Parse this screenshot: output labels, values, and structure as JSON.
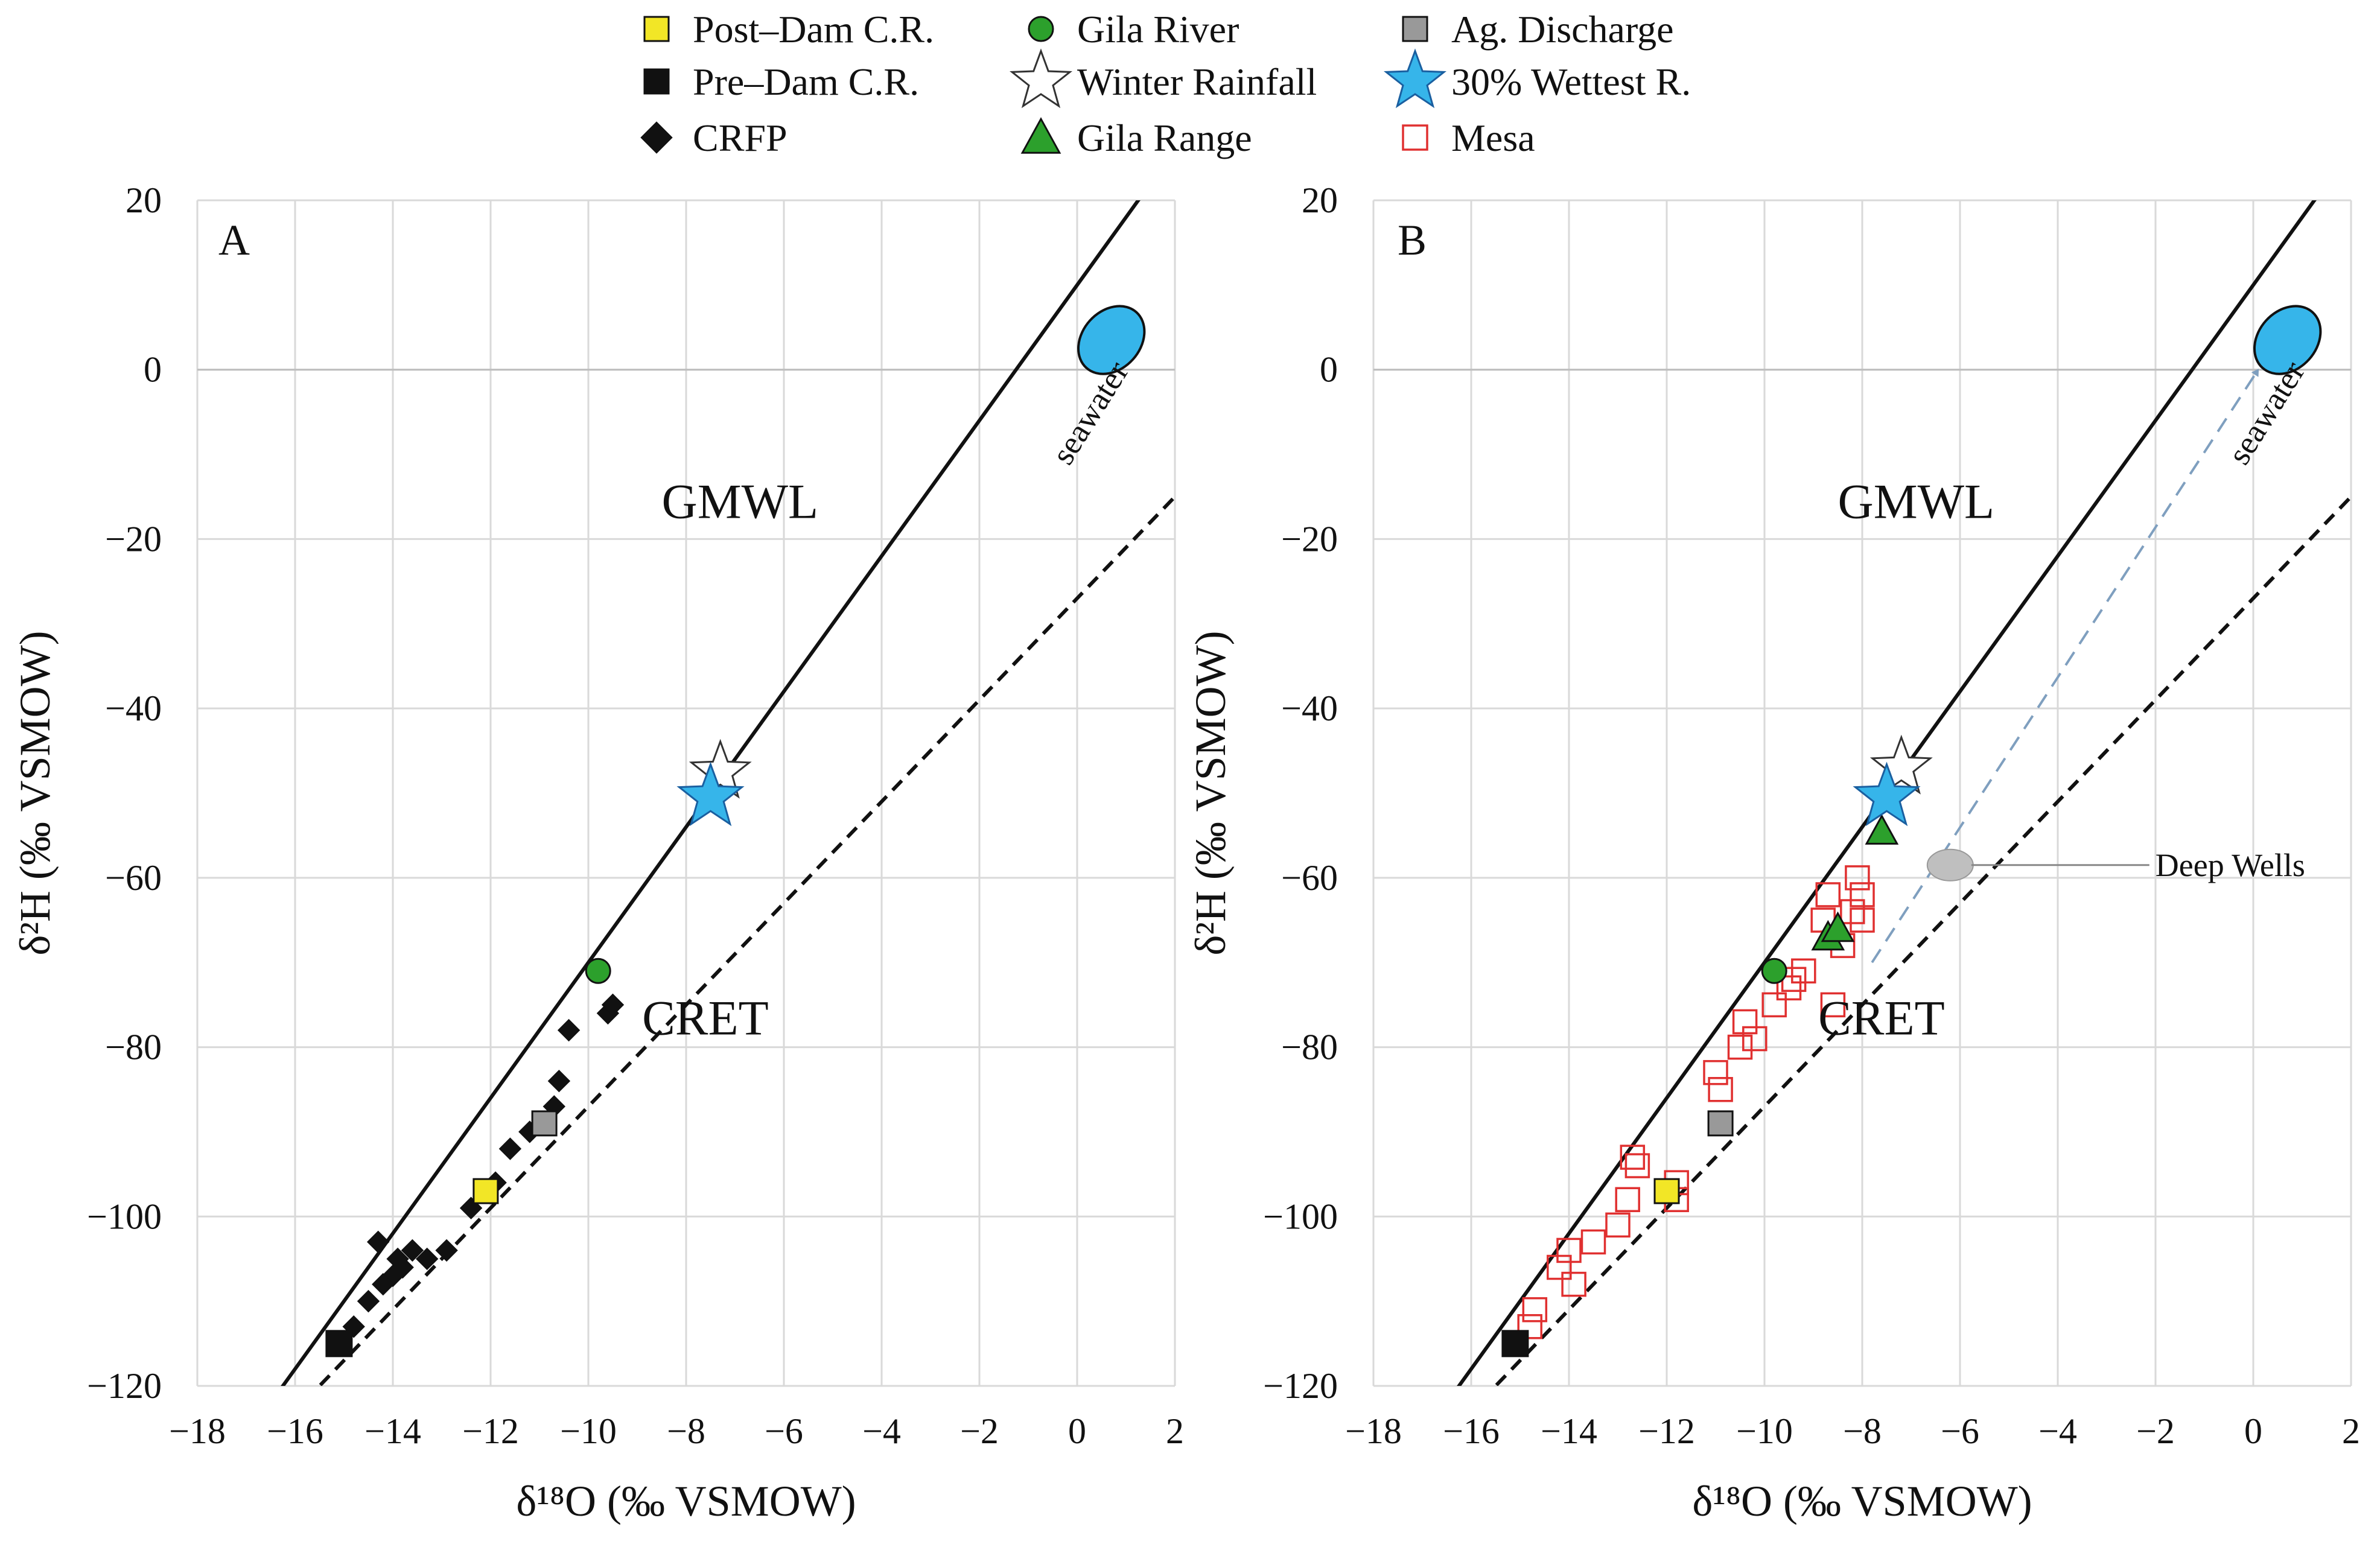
{
  "legend": [
    {
      "key": "post_dam",
      "label": "Post–Dam C.R.",
      "marker": "square",
      "fill": "#f2e626",
      "stroke": "#111111"
    },
    {
      "key": "pre_dam",
      "label": "Pre–Dam C.R.",
      "marker": "square",
      "fill": "#111111",
      "stroke": "#111111"
    },
    {
      "key": "crfp",
      "label": "CRFP",
      "marker": "diamond",
      "fill": "#111111",
      "stroke": "#111111"
    },
    {
      "key": "gila_river",
      "label": "Gila River",
      "marker": "circle",
      "fill": "#2ca02c",
      "stroke": "#111111"
    },
    {
      "key": "winter_rainfall",
      "label": "Winter Rainfall",
      "marker": "star",
      "fill": "#ffffff",
      "stroke": "#333333"
    },
    {
      "key": "gila_range",
      "label": "Gila Range",
      "marker": "triangle",
      "fill": "#2ca02c",
      "stroke": "#111111"
    },
    {
      "key": "ag_discharge",
      "label": "Ag. Discharge",
      "marker": "square",
      "fill": "#999999",
      "stroke": "#111111"
    },
    {
      "key": "wettest",
      "label": "30% Wettest R.",
      "marker": "star",
      "fill": "#36b5ea",
      "stroke": "#1a5fa0"
    },
    {
      "key": "mesa",
      "label": "Mesa",
      "marker": "open-square",
      "fill": "none",
      "stroke": "#e03030"
    }
  ],
  "colors": {
    "grid": "#d9d9d9",
    "seawater": "#36b5ea",
    "deep_wells": "#bfbfbf",
    "arrow": "#7f9fbf"
  },
  "chart_data": [
    {
      "type": "scatter",
      "panel": "A",
      "xlabel": "δ¹⁸O (‰ VSMOW)",
      "ylabel": "δ²H (‰  VSMOW)",
      "xlim": [
        -18,
        2
      ],
      "ylim": [
        -120,
        20
      ],
      "xticks": [
        -18,
        -16,
        -14,
        -12,
        -10,
        -8,
        -6,
        -4,
        -2,
        0,
        2
      ],
      "yticks": [
        -120,
        -100,
        -80,
        -60,
        -40,
        -20,
        0,
        20
      ],
      "xtick_labels": [
        "−18",
        "−16",
        "−14",
        "−12",
        "−10",
        "−8",
        "−6",
        "−4",
        "−2",
        "0",
        "2"
      ],
      "ytick_labels": [
        "−120",
        "−100",
        "−80",
        "−60",
        "−40",
        "−20",
        "0",
        "20"
      ],
      "lines": [
        {
          "name": "GMWL",
          "slope": 8,
          "intercept": 10,
          "style": "solid",
          "label": "GMWL",
          "label_at": [
            -8.5,
            -17.5
          ]
        },
        {
          "name": "CRET",
          "slope": 6,
          "intercept": -27,
          "style": "dashed",
          "x_start": -16.1,
          "label": "CRET",
          "label_at": [
            -8.9,
            -78.5
          ]
        }
      ],
      "seawater": {
        "x": 0.7,
        "y": 3.5,
        "label": "seawater"
      },
      "series": [
        {
          "name": "CRFP",
          "key": "crfp",
          "points": [
            [
              -14.3,
              -103
            ],
            [
              -14.5,
              -110
            ],
            [
              -14.0,
              -107
            ],
            [
              -13.8,
              -106
            ],
            [
              -13.6,
              -104
            ],
            [
              -13.3,
              -105
            ],
            [
              -12.9,
              -104
            ],
            [
              -12.4,
              -99
            ],
            [
              -12.1,
              -97
            ],
            [
              -11.9,
              -96
            ],
            [
              -11.6,
              -92
            ],
            [
              -11.2,
              -90
            ],
            [
              -10.7,
              -87
            ],
            [
              -10.6,
              -84
            ],
            [
              -10.4,
              -78
            ],
            [
              -9.6,
              -76
            ],
            [
              -9.5,
              -75
            ],
            [
              -14.8,
              -113
            ],
            [
              -14.2,
              -108
            ],
            [
              -13.9,
              -105
            ]
          ]
        },
        {
          "name": "Pre-Dam C.R.",
          "key": "pre_dam",
          "points": [
            [
              -15.1,
              -115
            ]
          ]
        },
        {
          "name": "Post-Dam C.R.",
          "key": "post_dam",
          "points": [
            [
              -12.1,
              -97
            ]
          ]
        },
        {
          "name": "Ag. Discharge",
          "key": "ag_discharge",
          "points": [
            [
              -10.9,
              -89
            ]
          ]
        },
        {
          "name": "Gila River",
          "key": "gila_river",
          "points": [
            [
              -9.8,
              -71
            ]
          ]
        },
        {
          "name": "Winter Rainfall",
          "key": "winter_rainfall",
          "points": [
            [
              -7.3,
              -47.5
            ]
          ]
        },
        {
          "name": "30% Wettest R.",
          "key": "wettest",
          "points": [
            [
              -7.5,
              -50.5
            ]
          ]
        }
      ]
    },
    {
      "type": "scatter",
      "panel": "B",
      "xlabel": "δ¹⁸O (‰ VSMOW)",
      "ylabel": "δ²H (‰  VSMOW)",
      "xlim": [
        -18,
        2
      ],
      "ylim": [
        -120,
        20
      ],
      "xticks": [
        -18,
        -16,
        -14,
        -12,
        -10,
        -8,
        -6,
        -4,
        -2,
        0,
        2
      ],
      "yticks": [
        -120,
        -100,
        -80,
        -60,
        -40,
        -20,
        0,
        20
      ],
      "xtick_labels": [
        "−18",
        "−16",
        "−14",
        "−12",
        "−10",
        "−8",
        "−6",
        "−4",
        "−2",
        "0",
        "2"
      ],
      "ytick_labels": [
        "−120",
        "−100",
        "−80",
        "−60",
        "−40",
        "−20",
        "0",
        "20"
      ],
      "lines": [
        {
          "name": "GMWL",
          "slope": 8,
          "intercept": 10,
          "style": "solid",
          "label": "GMWL",
          "label_at": [
            -8.5,
            -17.5
          ]
        },
        {
          "name": "CRET",
          "slope": 6,
          "intercept": -27,
          "style": "dashed",
          "x_start": -16.1,
          "label": "CRET",
          "label_at": [
            -8.9,
            -78.5
          ]
        }
      ],
      "seawater": {
        "x": 0.7,
        "y": 3.5,
        "label": "seawater"
      },
      "deep_wells": {
        "x": -6.2,
        "y": -58.5,
        "label": "Deep Wells"
      },
      "arrow": {
        "from": [
          -7.8,
          -70
        ],
        "to": [
          0.1,
          0
        ]
      },
      "series": [
        {
          "name": "Mesa",
          "key": "mesa",
          "points": [
            [
              -14.8,
              -113
            ],
            [
              -14.7,
              -111
            ],
            [
              -14.2,
              -106
            ],
            [
              -14.0,
              -104
            ],
            [
              -13.9,
              -108
            ],
            [
              -13.5,
              -103
            ],
            [
              -13.0,
              -101
            ],
            [
              -12.8,
              -98
            ],
            [
              -12.7,
              -93
            ],
            [
              -12.6,
              -94
            ],
            [
              -11.8,
              -96
            ],
            [
              -11.8,
              -98
            ],
            [
              -11.0,
              -83
            ],
            [
              -10.9,
              -85
            ],
            [
              -10.5,
              -80
            ],
            [
              -10.4,
              -77
            ],
            [
              -10.2,
              -79
            ],
            [
              -9.8,
              -75
            ],
            [
              -9.5,
              -73
            ],
            [
              -9.4,
              -72
            ],
            [
              -9.2,
              -71
            ],
            [
              -8.8,
              -65
            ],
            [
              -8.7,
              -62
            ],
            [
              -8.6,
              -75
            ],
            [
              -8.4,
              -68
            ],
            [
              -8.2,
              -64
            ],
            [
              -8.1,
              -60
            ],
            [
              -8.0,
              -62
            ],
            [
              -8.0,
              -65
            ]
          ]
        },
        {
          "name": "Pre-Dam C.R.",
          "key": "pre_dam",
          "points": [
            [
              -15.1,
              -115
            ]
          ]
        },
        {
          "name": "Post-Dam C.R.",
          "key": "post_dam",
          "points": [
            [
              -12.0,
              -97
            ]
          ]
        },
        {
          "name": "Ag. Discharge",
          "key": "ag_discharge",
          "points": [
            [
              -10.9,
              -89
            ]
          ]
        },
        {
          "name": "Gila River",
          "key": "gila_river",
          "points": [
            [
              -9.8,
              -71
            ]
          ]
        },
        {
          "name": "Gila Range",
          "key": "gila_range",
          "points": [
            [
              -8.7,
              -67
            ],
            [
              -8.5,
              -66
            ],
            [
              -7.6,
              -54.5
            ]
          ]
        },
        {
          "name": "Winter Rainfall",
          "key": "winter_rainfall",
          "points": [
            [
              -7.2,
              -47
            ]
          ]
        },
        {
          "name": "30% Wettest R.",
          "key": "wettest",
          "points": [
            [
              -7.5,
              -50.5
            ]
          ]
        }
      ]
    }
  ]
}
